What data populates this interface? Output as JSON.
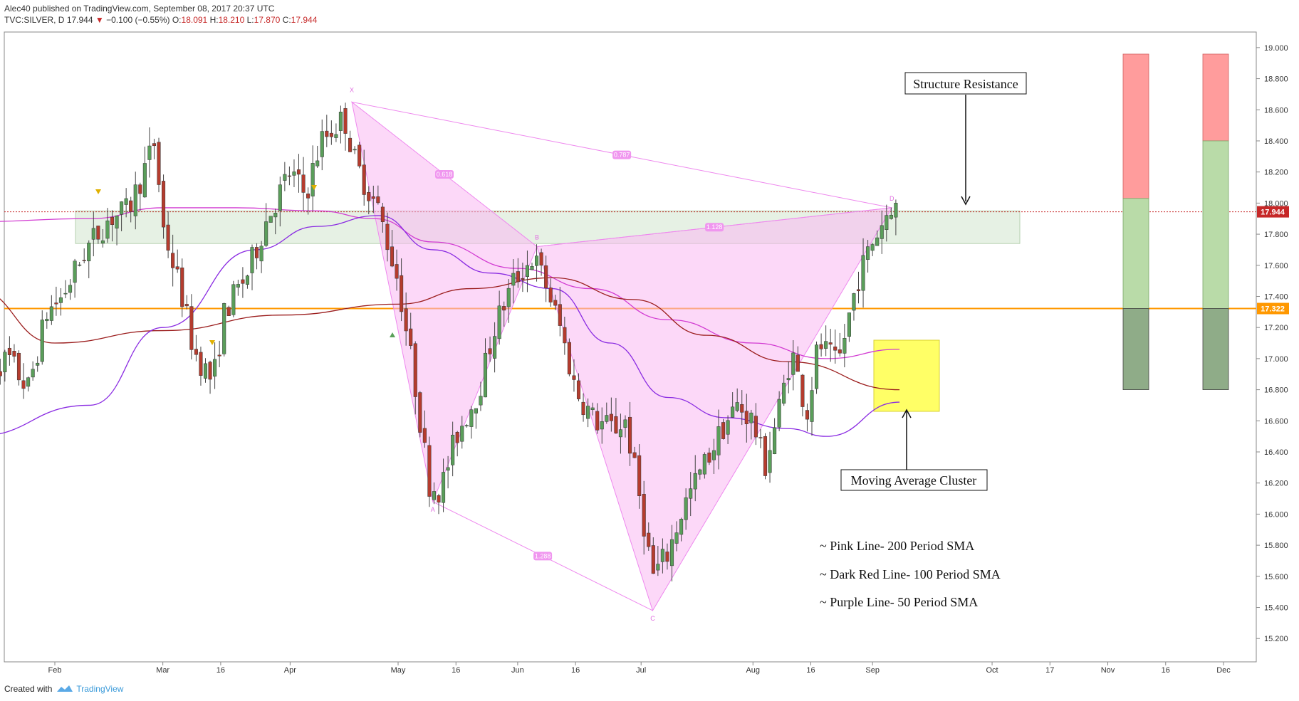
{
  "header": {
    "user": "Alec40",
    "published": " published on TradingView.com, September 08, 2017 20:37 UTC",
    "symbol": "TVC:SILVER, D",
    "last": "17.944",
    "change": "−0.100 (−0.55%)",
    "o_label": "O:",
    "o_val": "18.091",
    "h_label": "H:",
    "h_val": "18.210",
    "l_label": "L:",
    "l_val": "17.870",
    "c_label": "C:",
    "c_val": "17.944"
  },
  "footer": {
    "created": "Created with",
    "brand": "TradingView"
  },
  "colors": {
    "up": "#5a9e5a",
    "down": "#b53c2e",
    "sma200": "#d23bd2",
    "sma100": "#9b1d1d",
    "sma50": "#8a2be2",
    "pattern": "#f9b8f2",
    "resistance_zone": "#dcebd8",
    "orange": "#ff9800",
    "last_tag": "#c62828",
    "cluster": "#ffff66"
  },
  "annotations": {
    "structure_resistance": "Structure Resistance",
    "ma_cluster": "Moving Average Cluster",
    "legend": [
      "~ Pink Line- 200 Period SMA",
      "~ Dark Red Line- 100 Period SMA",
      "~ Purple Line- 50 Period SMA"
    ]
  },
  "price_tags": {
    "last": "17.944",
    "level": "17.322"
  },
  "chart_data": {
    "type": "candlestick",
    "y_axis": {
      "ylim": [
        15.05,
        19.1
      ],
      "ticks": [
        "15.200",
        "15.400",
        "15.600",
        "15.800",
        "16.000",
        "16.200",
        "16.400",
        "16.600",
        "16.800",
        "17.000",
        "17.200",
        "17.400",
        "17.600",
        "17.800",
        "18.000",
        "18.200",
        "18.400",
        "18.600",
        "18.800",
        "19.000"
      ]
    },
    "x_axis": {
      "ticks": [
        {
          "label": "Feb",
          "date": "2017-02-01"
        },
        {
          "label": "Mar",
          "date": "2017-03-01"
        },
        {
          "label": "16",
          "date": "2017-03-16"
        },
        {
          "label": "Apr",
          "date": "2017-04-03"
        },
        {
          "label": "May",
          "date": "2017-05-01"
        },
        {
          "label": "16",
          "date": "2017-05-16"
        },
        {
          "label": "Jun",
          "date": "2017-06-01"
        },
        {
          "label": "16",
          "date": "2017-06-16"
        },
        {
          "label": "Jul",
          "date": "2017-07-03"
        },
        {
          "label": "Aug",
          "date": "2017-08-01"
        },
        {
          "label": "16",
          "date": "2017-08-16"
        },
        {
          "label": "Sep",
          "date": "2017-09-01"
        },
        {
          "label": "Oct",
          "date": "2017-10-02"
        },
        {
          "label": "17",
          "date": "2017-10-17"
        },
        {
          "label": "Nov",
          "date": "2017-11-01"
        },
        {
          "label": "16",
          "date": "2017-11-16"
        },
        {
          "label": "Dec",
          "date": "2017-12-01"
        }
      ]
    },
    "candle_path": [
      [
        "2017-01-13",
        16.9
      ],
      [
        "2017-01-20",
        17.0
      ],
      [
        "2017-01-25",
        16.8
      ],
      [
        "2017-01-30",
        17.3
      ],
      [
        "2017-02-03",
        17.4
      ],
      [
        "2017-02-09",
        17.7
      ],
      [
        "2017-02-15",
        17.9
      ],
      [
        "2017-02-20",
        17.95
      ],
      [
        "2017-02-24",
        18.2
      ],
      [
        "2017-02-27",
        18.4
      ],
      [
        "2017-03-01",
        17.85
      ],
      [
        "2017-03-06",
        17.4
      ],
      [
        "2017-03-09",
        17.05
      ],
      [
        "2017-03-14",
        16.85
      ],
      [
        "2017-03-17",
        17.3
      ],
      [
        "2017-03-23",
        17.55
      ],
      [
        "2017-03-28",
        17.9
      ],
      [
        "2017-04-03",
        18.2
      ],
      [
        "2017-04-07",
        18.05
      ],
      [
        "2017-04-11",
        18.4
      ],
      [
        "2017-04-17",
        18.55
      ],
      [
        "2017-04-20",
        18.25
      ],
      [
        "2017-04-26",
        17.95
      ],
      [
        "2017-05-01",
        17.5
      ],
      [
        "2017-05-05",
        16.9
      ],
      [
        "2017-05-09",
        16.2
      ],
      [
        "2017-05-12",
        16.15
      ],
      [
        "2017-05-16",
        16.5
      ],
      [
        "2017-05-22",
        16.8
      ],
      [
        "2017-05-26",
        17.2
      ],
      [
        "2017-05-31",
        17.5
      ],
      [
        "2017-06-05",
        17.65
      ],
      [
        "2017-06-08",
        17.5
      ],
      [
        "2017-06-12",
        17.2
      ],
      [
        "2017-06-16",
        16.8
      ],
      [
        "2017-06-21",
        16.6
      ],
      [
        "2017-06-26",
        16.55
      ],
      [
        "2017-06-29",
        16.6
      ],
      [
        "2017-07-03",
        16.05
      ],
      [
        "2017-07-06",
        15.6
      ],
      [
        "2017-07-10",
        15.75
      ],
      [
        "2017-07-14",
        16.05
      ],
      [
        "2017-07-19",
        16.3
      ],
      [
        "2017-07-24",
        16.55
      ],
      [
        "2017-07-28",
        16.7
      ],
      [
        "2017-08-01",
        16.6
      ],
      [
        "2017-08-04",
        16.3
      ],
      [
        "2017-08-08",
        16.7
      ],
      [
        "2017-08-11",
        17.05
      ],
      [
        "2017-08-15",
        16.65
      ],
      [
        "2017-08-18",
        17.1
      ],
      [
        "2017-08-23",
        16.95
      ],
      [
        "2017-08-28",
        17.5
      ],
      [
        "2017-09-01",
        17.75
      ],
      [
        "2017-09-06",
        18.0
      ],
      [
        "2017-09-08",
        17.944
      ]
    ],
    "series": [
      {
        "name": "200 Period SMA",
        "points": [
          [
            "2017-01-11",
            17.88
          ],
          [
            "2017-02-10",
            17.9
          ],
          [
            "2017-03-01",
            17.97
          ],
          [
            "2017-03-20",
            17.97
          ],
          [
            "2017-04-10",
            17.95
          ],
          [
            "2017-04-25",
            17.9
          ],
          [
            "2017-05-10",
            17.75
          ],
          [
            "2017-06-01",
            17.58
          ],
          [
            "2017-06-20",
            17.45
          ],
          [
            "2017-07-10",
            17.25
          ],
          [
            "2017-08-01",
            17.1
          ],
          [
            "2017-08-20",
            17.0
          ],
          [
            "2017-09-08",
            17.06
          ]
        ]
      },
      {
        "name": "100 Period SMA",
        "points": [
          [
            "2017-01-11",
            17.45
          ],
          [
            "2017-02-01",
            17.1
          ],
          [
            "2017-03-01",
            17.18
          ],
          [
            "2017-04-01",
            17.28
          ],
          [
            "2017-05-01",
            17.35
          ],
          [
            "2017-05-20",
            17.45
          ],
          [
            "2017-06-10",
            17.52
          ],
          [
            "2017-07-01",
            17.38
          ],
          [
            "2017-07-20",
            17.15
          ],
          [
            "2017-08-10",
            16.98
          ],
          [
            "2017-09-08",
            16.8
          ]
        ]
      },
      {
        "name": "50 Period SMA",
        "points": [
          [
            "2017-01-11",
            16.5
          ],
          [
            "2017-02-10",
            16.7
          ],
          [
            "2017-03-01",
            17.2
          ],
          [
            "2017-03-25",
            17.7
          ],
          [
            "2017-04-10",
            17.85
          ],
          [
            "2017-04-26",
            17.92
          ],
          [
            "2017-05-10",
            17.7
          ],
          [
            "2017-05-25",
            17.55
          ],
          [
            "2017-06-10",
            17.45
          ],
          [
            "2017-06-25",
            17.1
          ],
          [
            "2017-07-10",
            16.75
          ],
          [
            "2017-07-25",
            16.62
          ],
          [
            "2017-08-10",
            16.55
          ],
          [
            "2017-08-20",
            16.5
          ],
          [
            "2017-09-08",
            16.72
          ]
        ]
      }
    ],
    "pattern": {
      "points": [
        {
          "label": "X",
          "date": "2017-04-19",
          "price": 18.65
        },
        {
          "label": "A",
          "date": "2017-05-10",
          "price": 16.08
        },
        {
          "label": "B",
          "date": "2017-06-06",
          "price": 17.72
        },
        {
          "label": "C",
          "date": "2017-07-06",
          "price": 15.38
        },
        {
          "label": "D",
          "date": "2017-09-06",
          "price": 17.97
        }
      ],
      "ratios": [
        {
          "text": "0.618",
          "between": [
            "X",
            "B"
          ]
        },
        {
          "text": "0.787",
          "between": [
            "X",
            "D"
          ]
        },
        {
          "text": "1.128",
          "between": [
            "B",
            "D"
          ]
        },
        {
          "text": "1.288",
          "between": [
            "A",
            "C"
          ]
        }
      ]
    },
    "levels": [
      {
        "name": "resistance_zone",
        "from": 17.74,
        "to": 17.95
      },
      {
        "name": "orange_level",
        "value": 17.322
      },
      {
        "name": "last_price",
        "value": 17.944
      }
    ]
  }
}
